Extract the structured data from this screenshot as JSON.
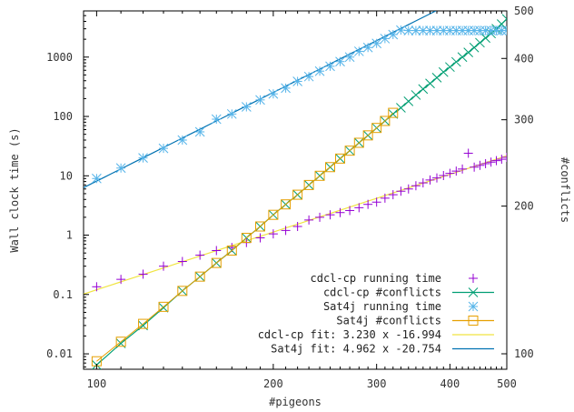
{
  "chart_data": {
    "type": "scatter",
    "xlabel": "#pigeons",
    "ylabel": "Wall clock time (s)",
    "y2label": "#conflicts",
    "x_scale": "log",
    "y_scale": "log",
    "y2_scale": "log",
    "xlim": [
      95,
      500
    ],
    "ylim": [
      0.0055,
      6000
    ],
    "y2lim": [
      93,
      500
    ],
    "x_ticks": [
      100,
      200,
      300,
      400,
      500
    ],
    "y_ticks": [
      {
        "value": 0.01,
        "label": "0.01"
      },
      {
        "value": 0.1,
        "label": "0.1"
      },
      {
        "value": 1,
        "label": "1"
      },
      {
        "value": 10,
        "label": "10"
      },
      {
        "value": 100,
        "label": "100"
      },
      {
        "value": 1000,
        "label": "1000"
      }
    ],
    "y2_ticks": [
      100,
      200,
      300,
      400,
      500
    ],
    "grid": false,
    "legend_position": "bottom-right",
    "series": [
      {
        "name": "cdcl-cp running time",
        "axis": "left",
        "marker": "plus",
        "color": "#9400d3",
        "points": [
          [
            100,
            0.135
          ],
          [
            110,
            0.18
          ],
          [
            120,
            0.22
          ],
          [
            130,
            0.3
          ],
          [
            140,
            0.36
          ],
          [
            150,
            0.46
          ],
          [
            160,
            0.55
          ],
          [
            170,
            0.62
          ],
          [
            180,
            0.75
          ],
          [
            190,
            0.9
          ],
          [
            200,
            1.05
          ],
          [
            210,
            1.2
          ],
          [
            220,
            1.4
          ],
          [
            230,
            1.8
          ],
          [
            240,
            2.0
          ],
          [
            250,
            2.2
          ],
          [
            260,
            2.4
          ],
          [
            270,
            2.6
          ],
          [
            280,
            2.9
          ],
          [
            290,
            3.3
          ],
          [
            300,
            3.6
          ],
          [
            310,
            4.2
          ],
          [
            320,
            4.8
          ],
          [
            330,
            5.5
          ],
          [
            340,
            6.0
          ],
          [
            350,
            6.8
          ],
          [
            360,
            7.6
          ],
          [
            370,
            8.5
          ],
          [
            380,
            9.2
          ],
          [
            390,
            10.1
          ],
          [
            400,
            11.0
          ],
          [
            410,
            12.0
          ],
          [
            420,
            13.0
          ],
          [
            430,
            24.0
          ],
          [
            440,
            14.0
          ],
          [
            450,
            15.0
          ],
          [
            460,
            16.0
          ],
          [
            470,
            17.0
          ],
          [
            480,
            18.0
          ],
          [
            490,
            19.0
          ],
          [
            500,
            20.5
          ]
        ]
      },
      {
        "name": "cdcl-cp    #conflicts",
        "axis": "left",
        "marker": "cross",
        "color": "#009e73",
        "points": [
          [
            100,
            0.0065
          ],
          [
            110,
            0.015
          ],
          [
            120,
            0.03
          ],
          [
            130,
            0.06
          ],
          [
            140,
            0.115
          ],
          [
            150,
            0.2
          ],
          [
            160,
            0.34
          ],
          [
            170,
            0.55
          ],
          [
            180,
            0.9
          ],
          [
            190,
            1.4
          ],
          [
            200,
            2.2
          ],
          [
            210,
            3.3
          ],
          [
            220,
            4.8
          ],
          [
            230,
            7.0
          ],
          [
            240,
            10.0
          ],
          [
            250,
            14.0
          ],
          [
            260,
            19.5
          ],
          [
            270,
            26.5
          ],
          [
            280,
            36.0
          ],
          [
            290,
            48.0
          ],
          [
            300,
            64.0
          ],
          [
            310,
            84.0
          ],
          [
            320,
            110.0
          ],
          [
            330,
            140.0
          ],
          [
            340,
            180.0
          ],
          [
            350,
            230.0
          ],
          [
            360,
            290.0
          ],
          [
            370,
            360.0
          ],
          [
            380,
            450.0
          ],
          [
            390,
            560.0
          ],
          [
            400,
            680.0
          ],
          [
            410,
            830.0
          ],
          [
            420,
            1000.0
          ],
          [
            430,
            1200.0
          ],
          [
            440,
            1450.0
          ],
          [
            450,
            1750.0
          ],
          [
            460,
            2100.0
          ],
          [
            470,
            2500.0
          ],
          [
            480,
            3000.0
          ],
          [
            490,
            3600.0
          ],
          [
            500,
            4400.0
          ]
        ]
      },
      {
        "name": "Sat4j running time",
        "axis": "left",
        "marker": "star",
        "color": "#56b4e9",
        "points": [
          [
            100,
            9.0
          ],
          [
            110,
            13.5
          ],
          [
            120,
            20.0
          ],
          [
            130,
            29.0
          ],
          [
            140,
            40.0
          ],
          [
            150,
            55.0
          ],
          [
            160,
            90.0
          ],
          [
            170,
            110.0
          ],
          [
            180,
            145.0
          ],
          [
            190,
            190.0
          ],
          [
            200,
            240.0
          ],
          [
            210,
            300.0
          ],
          [
            220,
            390.0
          ],
          [
            230,
            470.0
          ],
          [
            240,
            580.0
          ],
          [
            250,
            700.0
          ],
          [
            260,
            840.0
          ],
          [
            270,
            1000.0
          ],
          [
            280,
            1250.0
          ],
          [
            290,
            1450.0
          ],
          [
            300,
            1700.0
          ],
          [
            310,
            2050.0
          ],
          [
            320,
            2400.0
          ],
          [
            330,
            2850.0
          ],
          [
            340,
            2800.0
          ],
          [
            350,
            2800.0
          ],
          [
            360,
            2800.0
          ],
          [
            370,
            2800.0
          ],
          [
            380,
            2800.0
          ],
          [
            390,
            2800.0
          ],
          [
            400,
            2800.0
          ],
          [
            410,
            2800.0
          ],
          [
            420,
            2800.0
          ],
          [
            430,
            2800.0
          ],
          [
            440,
            2800.0
          ],
          [
            450,
            2800.0
          ],
          [
            460,
            2800.0
          ],
          [
            470,
            2800.0
          ],
          [
            480,
            2800.0
          ],
          [
            490,
            2800.0
          ],
          [
            500,
            2800.0
          ]
        ]
      },
      {
        "name": "Sat4j    #conflicts",
        "axis": "left",
        "marker": "square",
        "color": "#e69f00",
        "points": [
          [
            100,
            0.0075
          ],
          [
            110,
            0.016
          ],
          [
            120,
            0.032
          ],
          [
            130,
            0.062
          ],
          [
            140,
            0.115
          ],
          [
            150,
            0.2
          ],
          [
            160,
            0.34
          ],
          [
            170,
            0.55
          ],
          [
            180,
            0.9
          ],
          [
            190,
            1.4
          ],
          [
            200,
            2.2
          ],
          [
            210,
            3.3
          ],
          [
            220,
            4.8
          ],
          [
            230,
            7.0
          ],
          [
            240,
            10.0
          ],
          [
            250,
            14.0
          ],
          [
            260,
            19.5
          ],
          [
            270,
            26.5
          ],
          [
            280,
            36.0
          ],
          [
            290,
            48.0
          ],
          [
            300,
            64.0
          ],
          [
            310,
            84.0
          ],
          [
            320,
            115.0
          ]
        ]
      }
    ],
    "fits": [
      {
        "name": "cdcl-cp fit: 3.230 x -16.994",
        "color": "#f0e442",
        "slope": 3.23,
        "intercept": -16.994,
        "x_range": [
          95,
          500
        ]
      },
      {
        "name": "Sat4j fit: 4.962 x -20.754",
        "color": "#0072b2",
        "slope": 4.962,
        "intercept": -20.754,
        "x_range": [
          95,
          500
        ]
      }
    ]
  }
}
